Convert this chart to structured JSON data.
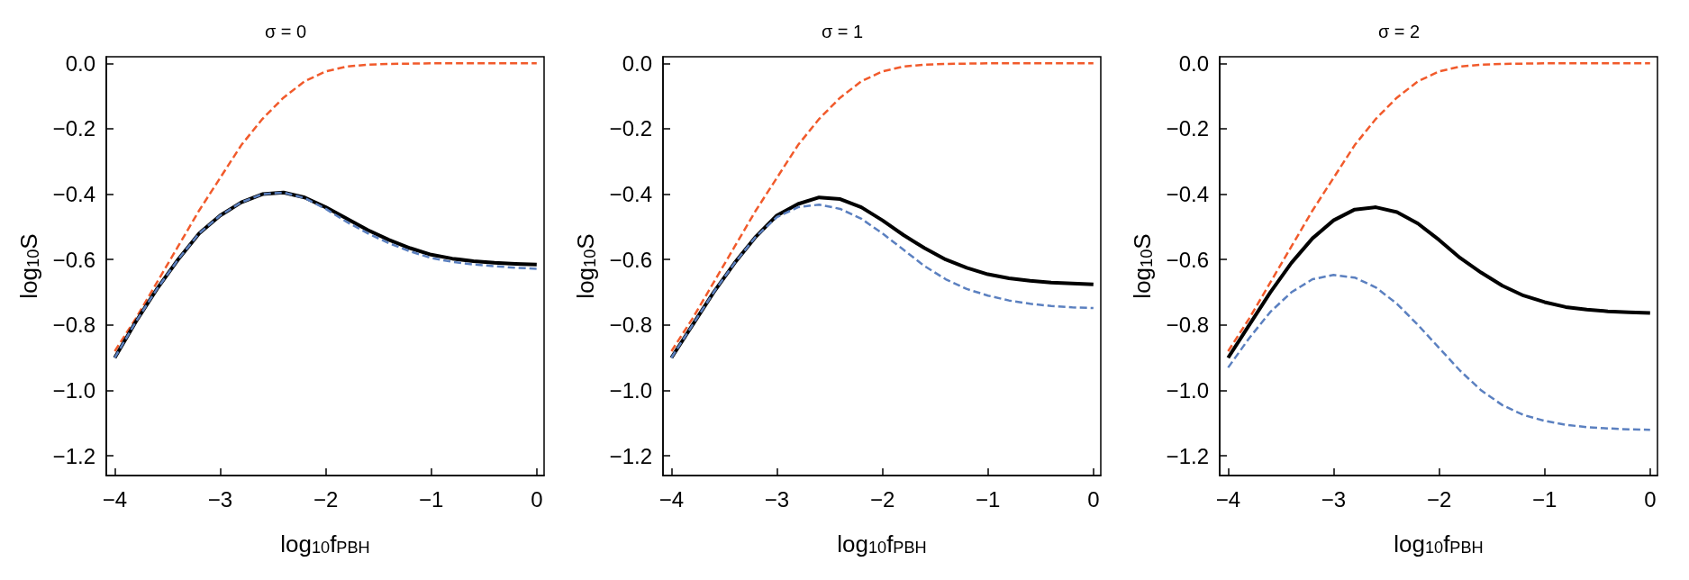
{
  "chart_data": [
    {
      "type": "line",
      "title": "σ = 0",
      "xlabel": "log$_{10}$f$_{PBH}$",
      "ylabel": "log$_{10}$S",
      "xlim": [
        -4.08,
        0.07
      ],
      "ylim": [
        -1.26,
        0.02
      ],
      "xticks": [
        {
          "value": -4,
          "label": "−4"
        },
        {
          "value": -3,
          "label": "−3"
        },
        {
          "value": -2,
          "label": "−2"
        },
        {
          "value": -1,
          "label": "−1"
        },
        {
          "value": 0,
          "label": "0"
        }
      ],
      "yticks": [
        {
          "value": 0,
          "label": "0.0"
        },
        {
          "value": -0.2,
          "label": "−0.2"
        },
        {
          "value": -0.4,
          "label": "−0.4"
        },
        {
          "value": -0.6,
          "label": "−0.6"
        },
        {
          "value": -0.8,
          "label": "−0.8"
        },
        {
          "value": -1,
          "label": "−1.0"
        },
        {
          "value": -1.2,
          "label": "−1.2"
        }
      ],
      "grid": false,
      "marker": "none",
      "x": [
        -4,
        -3.8,
        -3.6,
        -3.4,
        -3.2,
        -3,
        -2.8,
        -2.6,
        -2.4,
        -2.2,
        -2,
        -1.8,
        -1.6,
        -1.4,
        -1.2,
        -1,
        -0.8,
        -0.6,
        -0.4,
        -0.2,
        0
      ],
      "series": [
        {
          "color": "#f15a2b",
          "line_style": "dashed",
          "values": [
            -0.88,
            -0.78,
            -0.67,
            -0.56,
            -0.45,
            -0.35,
            -0.25,
            -0.17,
            -0.105,
            -0.055,
            -0.025,
            -0.01,
            -0.004,
            -0.002,
            -0.001,
            0,
            0,
            0,
            0,
            0,
            0
          ]
        },
        {
          "color": "#000000",
          "line_style": "solid",
          "values": [
            -0.9,
            -0.79,
            -0.69,
            -0.6,
            -0.52,
            -0.465,
            -0.425,
            -0.4,
            -0.395,
            -0.41,
            -0.44,
            -0.475,
            -0.51,
            -0.54,
            -0.565,
            -0.585,
            -0.597,
            -0.605,
            -0.61,
            -0.613,
            -0.615
          ]
        },
        {
          "color": "#5b80c0",
          "line_style": "dashed",
          "values": [
            -0.9,
            -0.79,
            -0.69,
            -0.6,
            -0.52,
            -0.465,
            -0.425,
            -0.4,
            -0.395,
            -0.412,
            -0.445,
            -0.485,
            -0.52,
            -0.55,
            -0.575,
            -0.595,
            -0.607,
            -0.615,
            -0.62,
            -0.625,
            -0.628
          ]
        }
      ]
    },
    {
      "type": "line",
      "title": "σ = 1",
      "xlabel": "log$_{10}$f$_{PBH}$",
      "ylabel": "log$_{10}$S",
      "xlim": [
        -4.08,
        0.07
      ],
      "ylim": [
        -1.26,
        0.02
      ],
      "xticks": [
        {
          "value": -4,
          "label": "−4"
        },
        {
          "value": -3,
          "label": "−3"
        },
        {
          "value": -2,
          "label": "−2"
        },
        {
          "value": -1,
          "label": "−1"
        },
        {
          "value": 0,
          "label": "0"
        }
      ],
      "yticks": [
        {
          "value": 0,
          "label": "0.0"
        },
        {
          "value": -0.2,
          "label": "−0.2"
        },
        {
          "value": -0.4,
          "label": "−0.4"
        },
        {
          "value": -0.6,
          "label": "−0.6"
        },
        {
          "value": -0.8,
          "label": "−0.8"
        },
        {
          "value": -1,
          "label": "−1.0"
        },
        {
          "value": -1.2,
          "label": "−1.2"
        }
      ],
      "grid": false,
      "marker": "none",
      "x": [
        -4,
        -3.8,
        -3.6,
        -3.4,
        -3.2,
        -3,
        -2.8,
        -2.6,
        -2.4,
        -2.2,
        -2,
        -1.8,
        -1.6,
        -1.4,
        -1.2,
        -1,
        -0.8,
        -0.6,
        -0.4,
        -0.2,
        0
      ],
      "series": [
        {
          "color": "#f15a2b",
          "line_style": "dashed",
          "values": [
            -0.88,
            -0.78,
            -0.67,
            -0.56,
            -0.45,
            -0.35,
            -0.25,
            -0.17,
            -0.105,
            -0.055,
            -0.025,
            -0.01,
            -0.004,
            -0.002,
            -0.001,
            0,
            0,
            0,
            0,
            0,
            0
          ]
        },
        {
          "color": "#000000",
          "line_style": "solid",
          "values": [
            -0.9,
            -0.8,
            -0.7,
            -0.61,
            -0.53,
            -0.465,
            -0.43,
            -0.41,
            -0.415,
            -0.44,
            -0.48,
            -0.525,
            -0.565,
            -0.6,
            -0.625,
            -0.645,
            -0.657,
            -0.665,
            -0.67,
            -0.673,
            -0.676
          ]
        },
        {
          "color": "#5b80c0",
          "line_style": "dashed",
          "values": [
            -0.9,
            -0.8,
            -0.7,
            -0.61,
            -0.53,
            -0.47,
            -0.44,
            -0.432,
            -0.445,
            -0.475,
            -0.52,
            -0.57,
            -0.62,
            -0.66,
            -0.69,
            -0.71,
            -0.725,
            -0.735,
            -0.742,
            -0.746,
            -0.748
          ]
        }
      ]
    },
    {
      "type": "line",
      "title": "σ = 2",
      "xlabel": "log$_{10}$f$_{PBH}$",
      "ylabel": "log$_{10}$S",
      "xlim": [
        -4.08,
        0.07
      ],
      "ylim": [
        -1.26,
        0.02
      ],
      "xticks": [
        {
          "value": -4,
          "label": "−4"
        },
        {
          "value": -3,
          "label": "−3"
        },
        {
          "value": -2,
          "label": "−2"
        },
        {
          "value": -1,
          "label": "−1"
        },
        {
          "value": 0,
          "label": "0"
        }
      ],
      "yticks": [
        {
          "value": 0,
          "label": "0.0"
        },
        {
          "value": -0.2,
          "label": "−0.2"
        },
        {
          "value": -0.4,
          "label": "−0.4"
        },
        {
          "value": -0.6,
          "label": "−0.6"
        },
        {
          "value": -0.8,
          "label": "−0.8"
        },
        {
          "value": -1,
          "label": "−1.0"
        },
        {
          "value": -1.2,
          "label": "−1.2"
        }
      ],
      "grid": false,
      "marker": "none",
      "x": [
        -4,
        -3.8,
        -3.6,
        -3.4,
        -3.2,
        -3,
        -2.8,
        -2.6,
        -2.4,
        -2.2,
        -2,
        -1.8,
        -1.6,
        -1.4,
        -1.2,
        -1,
        -0.8,
        -0.6,
        -0.4,
        -0.2,
        0
      ],
      "series": [
        {
          "color": "#f15a2b",
          "line_style": "dashed",
          "values": [
            -0.88,
            -0.78,
            -0.67,
            -0.56,
            -0.45,
            -0.35,
            -0.25,
            -0.17,
            -0.105,
            -0.055,
            -0.025,
            -0.01,
            -0.004,
            -0.002,
            -0.001,
            0,
            0,
            0,
            0,
            0,
            0
          ]
        },
        {
          "color": "#000000",
          "line_style": "solid",
          "values": [
            -0.9,
            -0.8,
            -0.7,
            -0.61,
            -0.535,
            -0.48,
            -0.447,
            -0.44,
            -0.455,
            -0.49,
            -0.54,
            -0.595,
            -0.64,
            -0.68,
            -0.71,
            -0.73,
            -0.745,
            -0.753,
            -0.758,
            -0.761,
            -0.763
          ]
        },
        {
          "color": "#5b80c0",
          "line_style": "dashed",
          "values": [
            -0.93,
            -0.84,
            -0.76,
            -0.7,
            -0.66,
            -0.647,
            -0.655,
            -0.685,
            -0.735,
            -0.8,
            -0.87,
            -0.94,
            -1,
            -1.045,
            -1.075,
            -1.093,
            -1.105,
            -1.112,
            -1.116,
            -1.119,
            -1.12
          ]
        }
      ]
    }
  ]
}
